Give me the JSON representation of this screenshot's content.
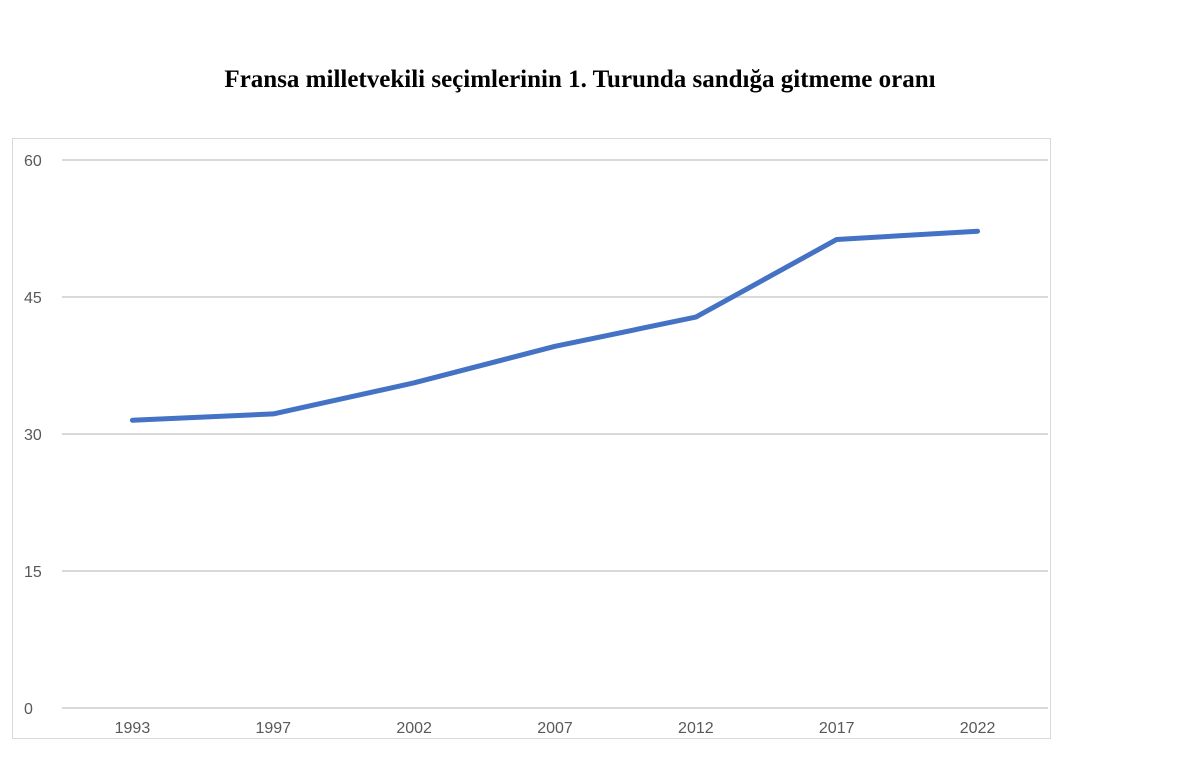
{
  "chart_data": {
    "type": "line",
    "title": "Fransa milletvekili seçimlerinin 1. Turunda sandığa gitmeme oranı",
    "xlabel": "",
    "ylabel": "",
    "categories": [
      "1993",
      "1997",
      "2002",
      "2007",
      "2012",
      "2017",
      "2022"
    ],
    "series": [
      {
        "values": [
          31.5,
          32.2,
          35.6,
          39.6,
          42.8,
          51.3,
          52.2
        ],
        "color": "#4472c4"
      }
    ],
    "ylim": [
      0,
      60
    ],
    "yticks": [
      "0",
      "15",
      "30",
      "45",
      "60"
    ],
    "grid": true,
    "legend": "none"
  }
}
